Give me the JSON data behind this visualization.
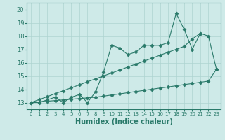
{
  "line1_x": [
    0,
    1,
    2,
    3,
    4,
    5,
    6,
    7,
    8,
    9,
    10,
    11,
    12,
    13,
    14,
    15,
    16,
    17,
    18,
    19,
    20,
    21,
    22,
    23
  ],
  "line1_y": [
    13.0,
    13.0,
    13.2,
    13.4,
    13.0,
    13.4,
    13.6,
    13.0,
    13.8,
    15.3,
    17.3,
    17.1,
    16.6,
    16.8,
    17.3,
    17.3,
    17.3,
    17.5,
    19.7,
    18.5,
    17.0,
    18.2,
    18.0,
    15.5
  ],
  "line2_x": [
    0,
    1,
    2,
    3,
    4,
    5,
    6,
    7,
    8,
    9,
    10,
    11,
    12,
    13,
    14,
    15,
    16,
    17,
    18,
    19,
    20,
    21,
    22,
    23
  ],
  "line2_y": [
    13.0,
    13.05,
    13.1,
    13.15,
    13.2,
    13.25,
    13.3,
    13.35,
    13.4,
    13.48,
    13.57,
    13.65,
    13.74,
    13.83,
    13.91,
    14.0,
    14.09,
    14.17,
    14.26,
    14.35,
    14.43,
    14.52,
    14.61,
    15.5
  ],
  "line3_x": [
    0,
    1,
    2,
    3,
    4,
    5,
    6,
    7,
    8,
    9,
    10,
    11,
    12,
    13,
    14,
    15,
    16,
    17,
    18,
    19,
    20,
    21
  ],
  "line3_y": [
    13.0,
    13.22,
    13.44,
    13.67,
    13.89,
    14.11,
    14.33,
    14.56,
    14.78,
    15.0,
    15.22,
    15.44,
    15.67,
    15.89,
    16.11,
    16.33,
    16.56,
    16.78,
    17.0,
    17.22,
    17.78,
    18.2
  ],
  "color": "#2a7a6a",
  "bg_color": "#ceeae8",
  "grid_color": "#aed4d0",
  "xlabel": "Humidex (Indice chaleur)",
  "ylim": [
    12.5,
    20.5
  ],
  "xlim": [
    -0.5,
    23.5
  ],
  "yticks": [
    13,
    14,
    15,
    16,
    17,
    18,
    19,
    20
  ],
  "xticks": [
    0,
    1,
    2,
    3,
    4,
    5,
    6,
    7,
    8,
    9,
    10,
    11,
    12,
    13,
    14,
    15,
    16,
    17,
    18,
    19,
    20,
    21,
    22,
    23
  ]
}
